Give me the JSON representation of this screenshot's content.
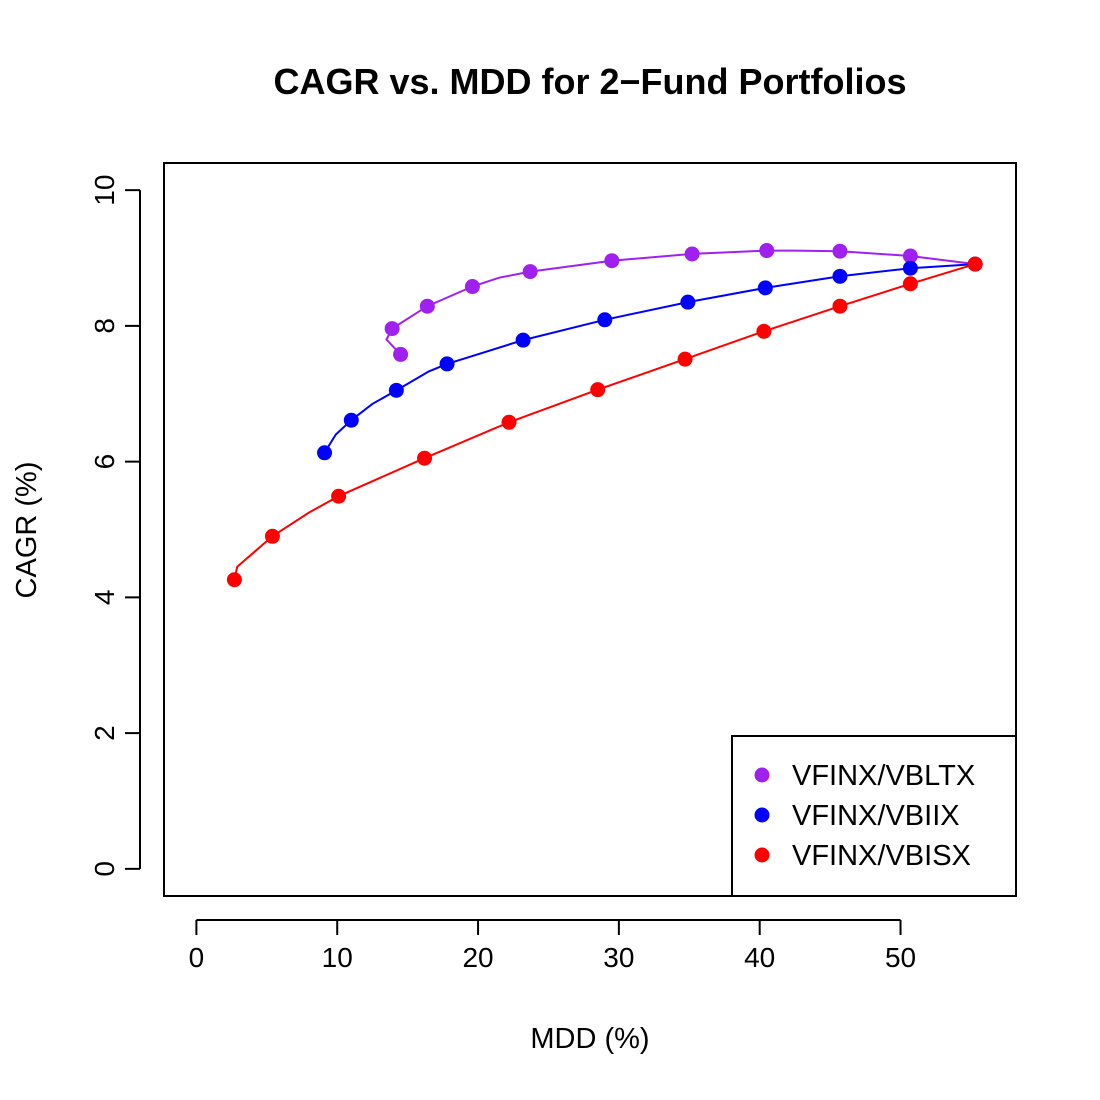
{
  "chart_data": {
    "type": "scatter",
    "title": "CAGR vs. MDD for 2−Fund Portfolios",
    "xlabel": "MDD (%)",
    "ylabel": "CAGR (%)",
    "xlim": [
      -2.3,
      58.2
    ],
    "ylim": [
      -0.4,
      10.4
    ],
    "xticks": [
      0,
      10,
      20,
      30,
      40,
      50
    ],
    "xtick_labels": [
      "0",
      "10",
      "20",
      "30",
      "40",
      "50"
    ],
    "yticks": [
      0,
      2,
      4,
      6,
      8,
      10
    ],
    "ytick_labels": [
      "0",
      "2",
      "4",
      "6",
      "8",
      "10"
    ],
    "legend_position": "bottom-right",
    "series": [
      {
        "name": "VFINX/VBLTX",
        "color": "#A020F0",
        "line": [
          [
            14.5,
            7.58
          ],
          [
            13.5,
            7.8
          ],
          [
            13.9,
            7.96
          ],
          [
            16.4,
            8.29
          ],
          [
            19.6,
            8.58
          ],
          [
            21.5,
            8.71
          ],
          [
            23.7,
            8.8
          ],
          [
            29.5,
            8.96
          ],
          [
            35.2,
            9.06
          ],
          [
            40.5,
            9.11
          ],
          [
            42.5,
            9.11
          ],
          [
            45.7,
            9.1
          ],
          [
            50.7,
            9.03
          ],
          [
            55.3,
            8.91
          ]
        ],
        "points": [
          [
            14.5,
            7.58
          ],
          [
            13.9,
            7.96
          ],
          [
            16.4,
            8.29
          ],
          [
            19.6,
            8.58
          ],
          [
            23.7,
            8.8
          ],
          [
            29.5,
            8.96
          ],
          [
            35.2,
            9.06
          ],
          [
            40.5,
            9.11
          ],
          [
            45.7,
            9.1
          ],
          [
            50.7,
            9.03
          ],
          [
            55.3,
            8.91
          ]
        ]
      },
      {
        "name": "VFINX/VBIIX",
        "color": "#0000FF",
        "line": [
          [
            9.1,
            6.13
          ],
          [
            9.9,
            6.4
          ],
          [
            11.0,
            6.61
          ],
          [
            12.5,
            6.85
          ],
          [
            14.2,
            7.05
          ],
          [
            16.5,
            7.33
          ],
          [
            17.8,
            7.44
          ],
          [
            23.2,
            7.79
          ],
          [
            29.0,
            8.09
          ],
          [
            34.9,
            8.35
          ],
          [
            40.4,
            8.56
          ],
          [
            45.7,
            8.73
          ],
          [
            50.7,
            8.85
          ],
          [
            55.3,
            8.91
          ]
        ],
        "points": [
          [
            9.1,
            6.13
          ],
          [
            11.0,
            6.61
          ],
          [
            14.2,
            7.05
          ],
          [
            17.8,
            7.44
          ],
          [
            23.2,
            7.79
          ],
          [
            29.0,
            8.09
          ],
          [
            34.9,
            8.35
          ],
          [
            40.4,
            8.56
          ],
          [
            45.7,
            8.73
          ],
          [
            50.7,
            8.85
          ],
          [
            55.3,
            8.91
          ]
        ]
      },
      {
        "name": "VFINX/VBISX",
        "color": "#FF0000",
        "line": [
          [
            2.7,
            4.26
          ],
          [
            2.9,
            4.45
          ],
          [
            5.4,
            4.9
          ],
          [
            8.0,
            5.25
          ],
          [
            10.1,
            5.49
          ],
          [
            16.2,
            6.05
          ],
          [
            22.2,
            6.58
          ],
          [
            28.5,
            7.06
          ],
          [
            34.7,
            7.51
          ],
          [
            40.3,
            7.92
          ],
          [
            45.7,
            8.29
          ],
          [
            50.7,
            8.62
          ],
          [
            55.3,
            8.91
          ]
        ],
        "points": [
          [
            2.7,
            4.26
          ],
          [
            5.4,
            4.9
          ],
          [
            10.1,
            5.49
          ],
          [
            16.2,
            6.05
          ],
          [
            22.2,
            6.58
          ],
          [
            28.5,
            7.06
          ],
          [
            34.7,
            7.51
          ],
          [
            40.3,
            7.92
          ],
          [
            45.7,
            8.29
          ],
          [
            50.7,
            8.62
          ],
          [
            55.3,
            8.91
          ]
        ]
      }
    ]
  }
}
